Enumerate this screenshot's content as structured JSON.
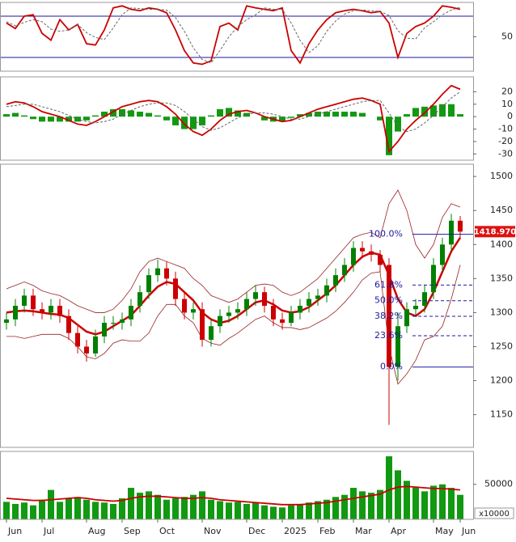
{
  "chart_data": [
    {
      "type": "line",
      "ylim": [
        0,
        100
      ],
      "yticks": [
        50
      ],
      "hlines": [
        80,
        20
      ],
      "hline_color": "#1a1a9a",
      "series": [
        {
          "color": "#cc0000",
          "dash": false,
          "values": [
            70,
            62,
            80,
            82,
            55,
            45,
            75,
            60,
            68,
            40,
            38,
            60,
            92,
            95,
            90,
            88,
            92,
            90,
            85,
            60,
            30,
            12,
            10,
            15,
            65,
            70,
            60,
            95,
            92,
            90,
            88,
            92,
            30,
            12,
            40,
            60,
            75,
            85,
            88,
            90,
            88,
            85,
            87,
            70,
            20,
            55,
            65,
            70,
            80,
            95,
            93,
            90
          ]
        },
        {
          "color": "#666666",
          "dash": true,
          "values": [
            72,
            66,
            71,
            75,
            72,
            61,
            58,
            60,
            68,
            56,
            49,
            46,
            63,
            82,
            92,
            91,
            90,
            90,
            89,
            78,
            58,
            34,
            17,
            12,
            30,
            50,
            65,
            75,
            82,
            92,
            90,
            90,
            70,
            45,
            27,
            37,
            58,
            73,
            83,
            88,
            89,
            88,
            87,
            81,
            59,
            48,
            47,
            63,
            72,
            82,
            89,
            93
          ]
        }
      ]
    },
    {
      "type": "combo",
      "ylim": [
        -35,
        32
      ],
      "yticks": [
        20,
        10,
        0,
        -10,
        -20,
        -30
      ],
      "series": [
        {
          "kind": "bar",
          "color": "#119911",
          "values": [
            2,
            3,
            1,
            -2,
            -4,
            -4,
            -4,
            -4,
            -4,
            -3,
            1,
            4,
            6,
            6,
            5,
            4,
            3,
            1,
            -3,
            -7,
            -10,
            -10,
            -7,
            1,
            6,
            7,
            5,
            3,
            0,
            -3,
            -4,
            -4,
            -1,
            2,
            3,
            4,
            4,
            4,
            4,
            4,
            3,
            0,
            -3,
            -31,
            -12,
            2,
            7,
            8,
            9,
            10,
            10,
            2
          ]
        },
        {
          "kind": "line",
          "color": "#cc0000",
          "dash": false,
          "values": [
            10,
            12,
            11,
            8,
            4,
            2,
            0,
            -3,
            -6,
            -7,
            -4,
            0,
            4,
            8,
            10,
            12,
            13,
            12,
            8,
            2,
            -6,
            -12,
            -15,
            -10,
            -3,
            2,
            4,
            5,
            3,
            0,
            -2,
            -4,
            -3,
            0,
            3,
            6,
            8,
            10,
            12,
            14,
            15,
            13,
            10,
            -28,
            -20,
            -10,
            -3,
            3,
            10,
            18,
            25,
            22
          ]
        },
        {
          "kind": "line",
          "color": "#666666",
          "dash": true,
          "values": [
            8,
            9,
            10,
            10,
            8,
            6,
            4,
            1,
            -2,
            -4,
            -5,
            -4,
            -2,
            2,
            5,
            8,
            10,
            11,
            11,
            9,
            4,
            -2,
            -8,
            -11,
            -9,
            -5,
            -1,
            2,
            3,
            3,
            2,
            0,
            -2,
            -2,
            0,
            2,
            4,
            6,
            8,
            10,
            12,
            13,
            13,
            3,
            -8,
            -12,
            -10,
            -5,
            1,
            8,
            15,
            20
          ]
        }
      ]
    },
    {
      "type": "candlestick",
      "ylim": [
        1102,
        1518
      ],
      "yticks": [
        1500,
        1450,
        1400,
        1350,
        1300,
        1250,
        1200,
        1150
      ],
      "up_color": "#008000",
      "down_color": "#cc0000",
      "open": [
        1285,
        1290,
        1310,
        1325,
        1305,
        1300,
        1310,
        1295,
        1270,
        1250,
        1240,
        1265,
        1285,
        1285,
        1290,
        1310,
        1330,
        1355,
        1365,
        1350,
        1320,
        1300,
        1305,
        1260,
        1280,
        1295,
        1300,
        1305,
        1320,
        1330,
        1310,
        1290,
        1285,
        1300,
        1310,
        1320,
        1325,
        1340,
        1355,
        1370,
        1395,
        1390,
        1385,
        1370,
        1220,
        1280,
        1305,
        1310,
        1330,
        1370,
        1400,
        1435
      ],
      "high": [
        1300,
        1320,
        1335,
        1335,
        1315,
        1320,
        1320,
        1305,
        1280,
        1260,
        1275,
        1295,
        1295,
        1300,
        1320,
        1340,
        1365,
        1378,
        1375,
        1360,
        1330,
        1315,
        1315,
        1290,
        1305,
        1310,
        1315,
        1330,
        1340,
        1338,
        1320,
        1300,
        1310,
        1320,
        1330,
        1335,
        1350,
        1365,
        1380,
        1405,
        1405,
        1400,
        1392,
        1380,
        1300,
        1315,
        1320,
        1340,
        1380,
        1410,
        1445,
        1442
      ],
      "low": [
        1275,
        1280,
        1300,
        1295,
        1290,
        1290,
        1285,
        1260,
        1240,
        1228,
        1235,
        1255,
        1275,
        1275,
        1280,
        1300,
        1320,
        1345,
        1340,
        1310,
        1290,
        1290,
        1250,
        1250,
        1270,
        1285,
        1290,
        1295,
        1310,
        1300,
        1280,
        1275,
        1280,
        1290,
        1300,
        1310,
        1315,
        1330,
        1345,
        1360,
        1380,
        1375,
        1360,
        1135,
        1200,
        1270,
        1295,
        1300,
        1320,
        1360,
        1390,
        1410
      ],
      "close": [
        1290,
        1310,
        1325,
        1305,
        1300,
        1310,
        1295,
        1270,
        1250,
        1240,
        1265,
        1285,
        1285,
        1290,
        1310,
        1330,
        1355,
        1365,
        1350,
        1320,
        1300,
        1305,
        1260,
        1280,
        1295,
        1300,
        1305,
        1320,
        1330,
        1310,
        1290,
        1285,
        1300,
        1310,
        1320,
        1325,
        1340,
        1355,
        1370,
        1395,
        1390,
        1385,
        1370,
        1220,
        1280,
        1305,
        1310,
        1330,
        1370,
        1400,
        1435,
        1419
      ],
      "series": [
        {
          "color": "#cc0000",
          "width": 2.5,
          "values": [
            1300,
            1302,
            1303,
            1302,
            1300,
            1298,
            1297,
            1292,
            1282,
            1272,
            1268,
            1272,
            1280,
            1288,
            1296,
            1310,
            1325,
            1338,
            1345,
            1342,
            1330,
            1318,
            1300,
            1290,
            1285,
            1288,
            1295,
            1305,
            1315,
            1318,
            1312,
            1303,
            1300,
            1302,
            1308,
            1318,
            1328,
            1340,
            1355,
            1370,
            1382,
            1388,
            1385,
            1355,
            1320,
            1300,
            1295,
            1305,
            1330,
            1360,
            1390,
            1410
          ]
        },
        {
          "color": "#992222",
          "width": 0.8,
          "values": [
            1335,
            1340,
            1345,
            1340,
            1332,
            1328,
            1325,
            1318,
            1310,
            1305,
            1300,
            1300,
            1305,
            1318,
            1335,
            1360,
            1375,
            1380,
            1375,
            1370,
            1365,
            1350,
            1340,
            1325,
            1320,
            1315,
            1320,
            1330,
            1340,
            1342,
            1340,
            1330,
            1325,
            1330,
            1340,
            1350,
            1365,
            1380,
            1395,
            1410,
            1415,
            1418,
            1410,
            1460,
            1480,
            1450,
            1400,
            1380,
            1400,
            1440,
            1460,
            1455
          ]
        },
        {
          "color": "#992222",
          "width": 0.8,
          "values": [
            1265,
            1265,
            1262,
            1265,
            1268,
            1268,
            1268,
            1262,
            1250,
            1235,
            1232,
            1240,
            1255,
            1260,
            1258,
            1258,
            1270,
            1295,
            1312,
            1312,
            1295,
            1285,
            1262,
            1255,
            1252,
            1262,
            1270,
            1280,
            1290,
            1295,
            1285,
            1278,
            1278,
            1275,
            1278,
            1285,
            1292,
            1302,
            1315,
            1330,
            1348,
            1358,
            1360,
            1250,
            1195,
            1210,
            1230,
            1260,
            1265,
            1280,
            1320,
            1370
          ]
        }
      ],
      "fib_color": "#1a1aa0",
      "fib": [
        {
          "value": 1415,
          "label": "100.0%"
        },
        {
          "value": 1340.5,
          "label": "61.8%"
        },
        {
          "value": 1317.5,
          "label": "50.0%"
        },
        {
          "value": 1294.5,
          "label": "38.2%"
        },
        {
          "value": 1266,
          "label": "23.6%"
        },
        {
          "value": 1220,
          "label": "0.0%"
        }
      ],
      "last_price": {
        "value": 1418.97,
        "label": "1418.970"
      }
    },
    {
      "type": "combo",
      "ylim": [
        0,
        97000
      ],
      "yticks": [
        50000
      ],
      "unit_label": "x10000",
      "categories": [
        "Jun",
        null,
        null,
        null,
        "Jul",
        null,
        null,
        null,
        null,
        "Aug",
        null,
        null,
        null,
        "Sep",
        null,
        null,
        null,
        "Oct",
        null,
        null,
        null,
        null,
        "Nov",
        null,
        null,
        null,
        null,
        "Dec",
        null,
        null,
        null,
        "2025",
        null,
        null,
        null,
        "Feb",
        null,
        null,
        null,
        "Mar",
        null,
        null,
        null,
        "Apr",
        null,
        null,
        null,
        null,
        "May",
        null,
        null,
        "Jun"
      ],
      "series": [
        {
          "kind": "bar",
          "color": "#119911",
          "values": [
            25000,
            22000,
            24000,
            20000,
            28000,
            42000,
            25000,
            30000,
            32000,
            28000,
            25000,
            24000,
            22000,
            30000,
            45000,
            38000,
            40000,
            35000,
            28000,
            30000,
            32000,
            35000,
            40000,
            28000,
            26000,
            24000,
            25000,
            22000,
            24000,
            20000,
            18000,
            17000,
            20000,
            22000,
            24000,
            26000,
            28000,
            32000,
            35000,
            45000,
            40000,
            38000,
            42000,
            90000,
            70000,
            55000,
            45000,
            40000,
            48000,
            50000,
            45000,
            35000
          ]
        },
        {
          "kind": "line",
          "color": "#cc0000",
          "dash": false,
          "values": [
            30000,
            29000,
            28000,
            27000,
            27000,
            28000,
            29000,
            30000,
            31000,
            30000,
            28000,
            27000,
            26000,
            27000,
            30000,
            32000,
            33000,
            33000,
            32000,
            31000,
            30000,
            30000,
            31000,
            30000,
            28000,
            27000,
            26000,
            25000,
            24000,
            23000,
            22000,
            21000,
            21000,
            21000,
            22000,
            23000,
            24000,
            26000,
            28000,
            30000,
            32000,
            34000,
            36000,
            42000,
            46000,
            47000,
            46000,
            45000,
            44000,
            44000,
            43000,
            42000
          ]
        }
      ]
    }
  ]
}
